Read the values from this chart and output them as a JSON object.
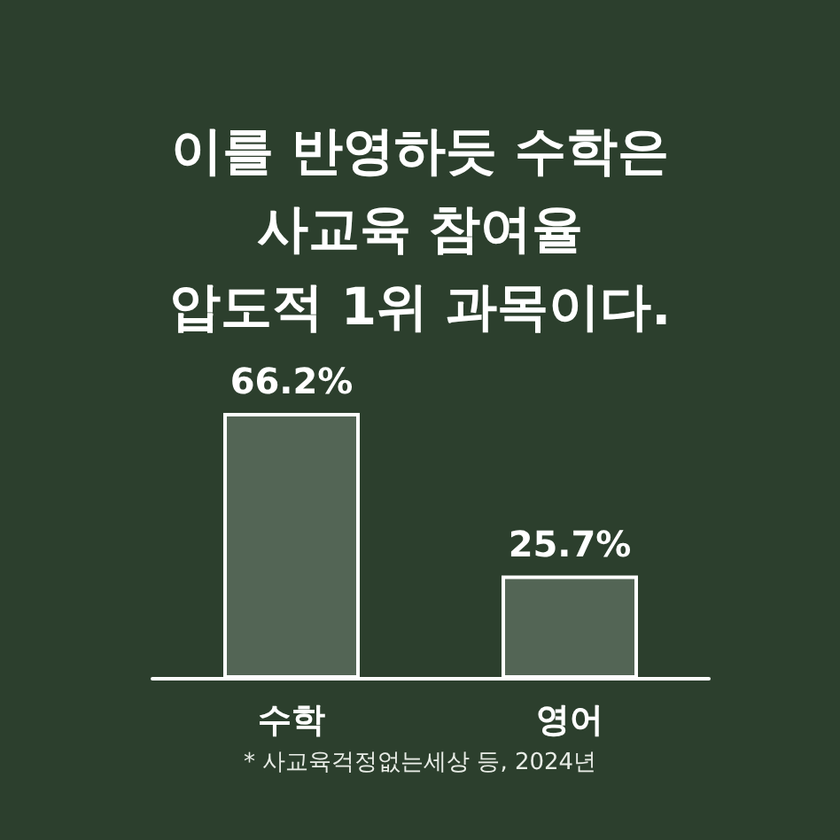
{
  "chart_data": {
    "type": "bar",
    "title": "이를 반영하듯 수학은\n사교육 참여율\n압도적 1위 과목이다.",
    "categories": [
      "수학",
      "영어"
    ],
    "values": [
      66.2,
      25.7
    ],
    "color": "#536555",
    "data_labels": true,
    "value_labels": [
      "66.2%",
      "25.7%"
    ],
    "annotations": [
      "* 사교육걱정없는세상 등, 2024년"
    ]
  }
}
